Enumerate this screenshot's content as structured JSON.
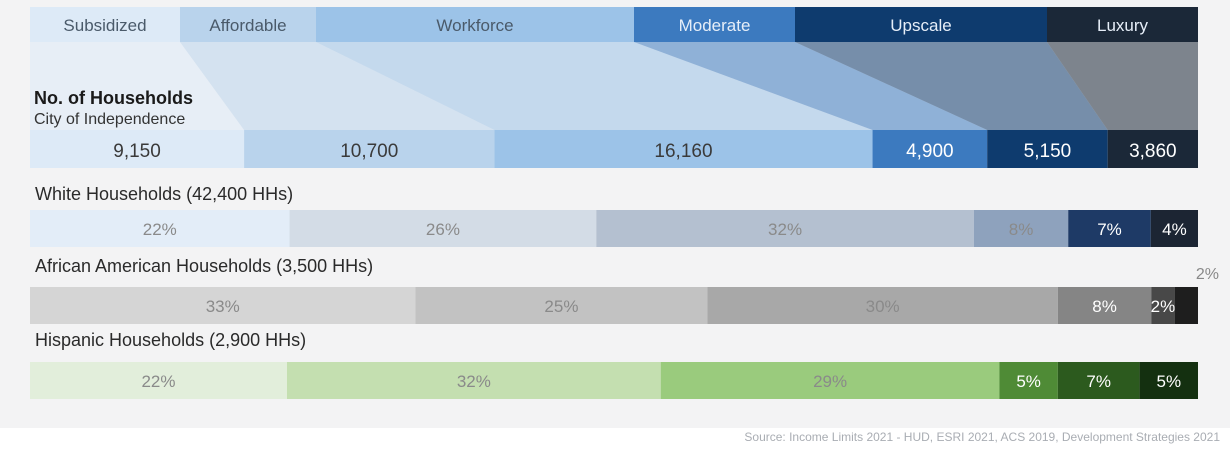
{
  "chart_data": {
    "type": "bar",
    "categories": [
      "Subsidized",
      "Affordable",
      "Workforce",
      "Moderate",
      "Upscale",
      "Luxury"
    ],
    "category_colors": [
      "#ddeaf7",
      "#b9d3ec",
      "#9cc3e8",
      "#3c7abf",
      "#0e3b6e",
      "#1b2838"
    ],
    "households": {
      "title": "No. of Households",
      "subtitle": "City of Independence",
      "values": [
        9150,
        10700,
        16160,
        4900,
        5150,
        3860
      ],
      "labels": [
        "9,150",
        "10,700",
        "16,160",
        "4,900",
        "5,150",
        "3,860"
      ]
    },
    "series": [
      {
        "name": "White Households (42,400 HHs)",
        "values": [
          22,
          26,
          32,
          8,
          7,
          4
        ],
        "labels": [
          "22%",
          "26%",
          "32%",
          "8%",
          "7%",
          "4%"
        ],
        "colors": [
          "#e3edf8",
          "#d3dce6",
          "#b4c0d0",
          "#8ea2bd",
          "#1e3a66",
          "#1c2533"
        ]
      },
      {
        "name": "African American Households (3,500 HHs)",
        "values": [
          33,
          25,
          30,
          8,
          2,
          2
        ],
        "labels": [
          "33%",
          "25%",
          "30%",
          "8%",
          "2%",
          "2%"
        ],
        "colors": [
          "#d5d5d5",
          "#c2c2c2",
          "#a8a8a8",
          "#858585",
          "#484848",
          "#1e1e1e"
        ]
      },
      {
        "name": "Hispanic Households (2,900 HHs)",
        "values": [
          22,
          32,
          29,
          5,
          7,
          5
        ],
        "labels": [
          "22%",
          "32%",
          "29%",
          "5%",
          "7%",
          "5%"
        ],
        "colors": [
          "#e2eedb",
          "#c4dfb0",
          "#9acb7d",
          "#4f8b36",
          "#2c5a1e",
          "#143010"
        ]
      }
    ]
  },
  "source": "Source: Income Limits 2021 - HUD, ESRI 2021, ACS 2019, Development Strategies 2021"
}
